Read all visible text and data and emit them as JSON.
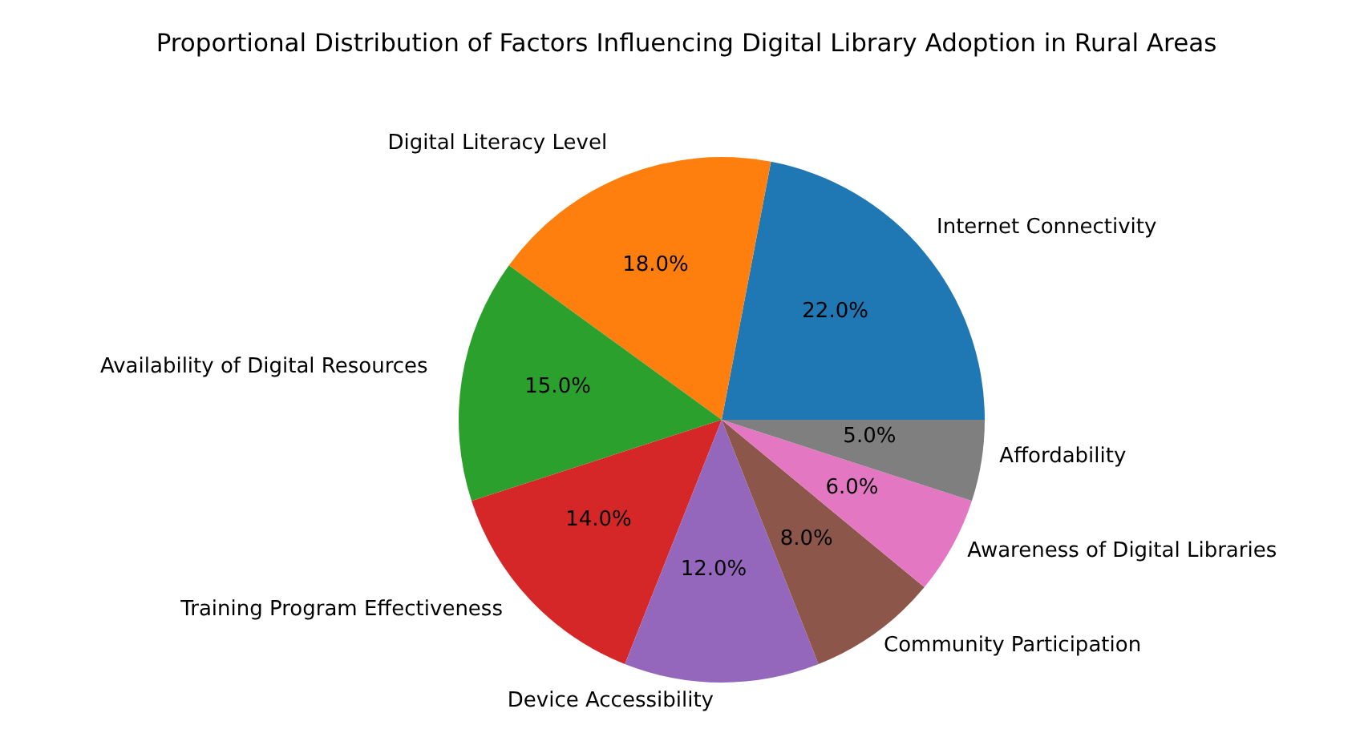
{
  "chart_data": {
    "type": "pie",
    "title": "Proportional Distribution of Factors Influencing Digital Library Adoption in Rural Areas",
    "categories": [
      "Internet Connectivity",
      "Digital Literacy Level",
      "Availability of Digital Resources",
      "Training Program Effectiveness",
      "Device Accessibility",
      "Community Participation",
      "Awareness of Digital Libraries",
      "Affordability"
    ],
    "values": [
      22,
      18,
      15,
      14,
      12,
      8,
      6,
      5
    ],
    "colors": [
      "#1f77b4",
      "#ff7f0e",
      "#2ca02c",
      "#d62728",
      "#9467bd",
      "#8c564b",
      "#e377c2",
      "#7f7f7f"
    ],
    "value_labels": [
      "22.0%",
      "18.0%",
      "15.0%",
      "14.0%",
      "12.0%",
      "8.0%",
      "6.0%",
      "5.0%"
    ]
  }
}
